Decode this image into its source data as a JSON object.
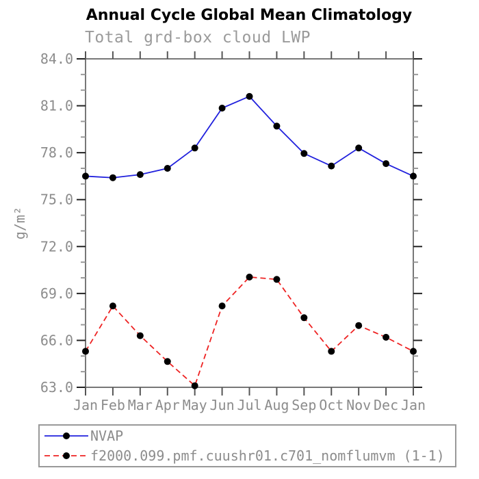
{
  "chart_data": {
    "type": "line",
    "title": "Annual Cycle Global Mean Climatology",
    "subtitle": "Total grd-box cloud LWP",
    "xlabel": "",
    "ylabel": "g/m²",
    "categories": [
      "Jan",
      "Feb",
      "Mar",
      "Apr",
      "May",
      "Jun",
      "Jul",
      "Aug",
      "Sep",
      "Oct",
      "Nov",
      "Dec",
      "Jan"
    ],
    "ylim": [
      63.0,
      84.0
    ],
    "ytick_step_major": 3.0,
    "ytick_step_minor": 1.0,
    "ytick_labels": [
      "63.0",
      "66.0",
      "69.0",
      "72.0",
      "75.0",
      "78.0",
      "81.0",
      "84.0"
    ],
    "grid": false,
    "legend_position": "bottom",
    "series": [
      {
        "name": "NVAP",
        "style": "solid",
        "color": "#2020dd",
        "marker": "circle",
        "marker_color": "#000000",
        "values": [
          76.5,
          76.4,
          76.6,
          77.0,
          78.3,
          80.85,
          81.6,
          79.7,
          77.95,
          77.15,
          78.3,
          77.3,
          76.5
        ]
      },
      {
        "name": "f2000.099.pmf.cuushr01.c701_nomflumvm (1-1)",
        "style": "dashed",
        "color": "#ee2222",
        "marker": "circle",
        "marker_color": "#000000",
        "values": [
          65.3,
          68.2,
          66.3,
          64.65,
          63.1,
          68.2,
          70.05,
          69.9,
          67.45,
          65.3,
          66.95,
          66.2,
          65.3
        ]
      }
    ],
    "axis_colors": {
      "frame": "#777777",
      "major_tick": "#222222",
      "minor_tick": "#999999",
      "month_tick": "#555555",
      "label_text": "#8c8c8c"
    }
  }
}
